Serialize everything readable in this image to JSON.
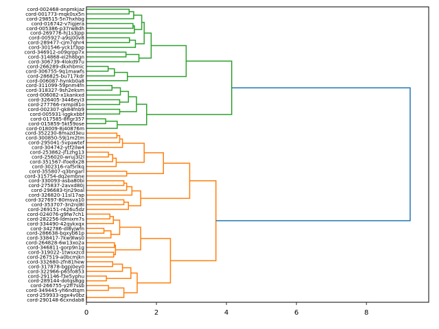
{
  "chart_data": {
    "type": "dendrogram",
    "orientation": "left",
    "title": "",
    "xlabel": "",
    "ylabel": "",
    "xlim": [
      0,
      9.78
    ],
    "xticks": [
      0,
      2,
      4,
      6,
      8
    ],
    "grid": false,
    "colors": {
      "cluster_green": "#2ca02c",
      "cluster_orange": "#ff7f0e",
      "above_threshold": "#1f77b4",
      "axis": "#000000"
    },
    "leaves": [
      "cord-002468-onpmkjaz",
      "cord-001773-mqk0sx5n",
      "cord-298515-5n7hxhbg",
      "cord-016742-v7igjera",
      "cord-005386-p37rw8dh",
      "cord-269776-hj1s3jpp",
      "cord-005927-a9sj00v8",
      "cord-289477-cjm7qhr4",
      "cord-301546-yck1f3pp",
      "cord-346912-o09qrpp7x",
      "cord-314868-ei2h8bgn",
      "cord-306739-4lokd97u",
      "cord-266289-dkxhbmic",
      "cord-306755-9q1mawfs",
      "cord-286825-bu717kdr",
      "cord-006087-hynkb0a8",
      "cord-311099-59pnm4fn",
      "cord-318327-9sh2eksm",
      "cord-006082-x1kankxd",
      "cord-326405-3446eyi3",
      "cord-277766-rxmpi81o",
      "cord-002307-gk84fnb9",
      "cord-005931-iggkxbbf",
      "cord-017585-8flgr357",
      "cord-015859-5kt59ose",
      "cord-018009-8j40876m",
      "cord-352230-8mazd3eu",
      "cord-300850-59j1m2tm",
      "cord-295041-5vpawtef",
      "cord-304742-ytf2ilw4",
      "cord-253862-jf1zhg13",
      "cord-256020-wruj3l2l",
      "cord-351567-ifoe8x28",
      "cord-302316-raf5rlkq",
      "cord-355807-q3bngarl",
      "cord-315754-dq2embne",
      "cord-330093-asba80bi",
      "cord-275837-2avxd80j",
      "cord-296683-tjn29oal",
      "cord-326820-11sl17ap",
      "cord-327697-80msva10",
      "cord-353707-3n2njl8l",
      "cord-269151-r426u5dz",
      "cord-024076-g9fw7ch1",
      "cord-282256-ldmixm7s",
      "cord-334490-42qykxqx",
      "cord-342786-dl8yjwfn",
      "cord-286638-bqxyb61p",
      "cord-338417-7kw9lws0",
      "cord-264828-6w13xo2a",
      "cord-346811-gorp9n1g",
      "cord-319022-1twsxzcd",
      "cord-267519-a0bcmjkn",
      "cord-332680-zfn81hew",
      "cord-317878-bgpj0ey0",
      "cord-322966-p65fo853",
      "cord-291146-f3e5yphu",
      "cord-289144-dotqs8gg",
      "cord-266755-y2ff7ssb",
      "cord-349445-yh6ndtqm",
      "cord-259933-qgx4v0bz",
      "cord-290148-6cxndab8"
    ],
    "tree": {
      "h": 9.25,
      "c": "above_threshold",
      "ch": [
        {
          "h": 4.15,
          "c": "cluster_green",
          "ch": [
            {
              "h": 2.85,
              "c": "cluster_green",
              "ch": [
                {
                  "h": 1.85,
                  "c": "cluster_green",
                  "ch": [
                    {
                      "h": 1.65,
                      "c": "cluster_green",
                      "ch": [
                        {
                          "h": 1.58,
                          "c": "cluster_green",
                          "ch": [
                            {
                              "h": 1.35,
                              "c": "cluster_green",
                              "ch": [
                                {
                                  "h": 1.22,
                                  "c": "cluster_green",
                                  "ch": [
                                    0,
                                    1
                                  ]
                                },
                                2
                              ]
                            },
                            {
                              "h": 1.37,
                              "c": "cluster_green",
                              "ch": [
                                {
                                  "h": 1.33,
                                  "c": "cluster_green",
                                  "ch": [
                                    3,
                                    4
                                  ]
                                },
                                5
                              ]
                            }
                          ]
                        },
                        {
                          "h": 1.4,
                          "c": "cluster_green",
                          "ch": [
                            {
                              "h": 1.23,
                              "c": "cluster_green",
                              "ch": [
                                6,
                                7
                              ]
                            },
                            8
                          ]
                        }
                      ]
                    },
                    {
                      "h": 1.5,
                      "c": "cluster_green",
                      "ch": [
                        {
                          "h": 1.13,
                          "c": "cluster_green",
                          "ch": [
                            9,
                            10
                          ]
                        },
                        11
                      ]
                    }
                  ]
                },
                {
                  "h": 1.17,
                  "c": "cluster_green",
                  "ch": [
                    {
                      "h": 0.8,
                      "c": "cluster_green",
                      "ch": [
                        {
                          "h": 0.62,
                          "c": "cluster_green",
                          "ch": [
                            12,
                            13
                          ]
                        },
                        14
                      ]
                    },
                    15
                  ]
                }
              ]
            },
            {
              "h": 1.72,
              "c": "cluster_green",
              "ch": [
                {
                  "h": 1.43,
                  "c": "cluster_green",
                  "ch": [
                    {
                      "h": 1.2,
                      "c": "cluster_green",
                      "ch": [
                        {
                          "h": 0.97,
                          "c": "cluster_green",
                          "ch": [
                            {
                              "h": 0.73,
                              "c": "cluster_green",
                              "ch": [
                                16,
                                17
                              ]
                            },
                            18
                          ]
                        },
                        {
                          "h": 0.95,
                          "c": "cluster_green",
                          "ch": [
                            19,
                            20
                          ]
                        }
                      ]
                    },
                    {
                      "h": 0.95,
                      "c": "cluster_green",
                      "ch": [
                        21,
                        22
                      ]
                    }
                  ]
                },
                {
                  "h": 0.88,
                  "c": "cluster_green",
                  "ch": [
                    {
                      "h": 0.55,
                      "c": "cluster_green",
                      "ch": [
                        23,
                        24
                      ]
                    },
                    25
                  ]
                }
              ]
            }
          ]
        },
        {
          "h": 3.7,
          "c": "cluster_orange",
          "ch": [
            {
              "h": 2.95,
              "c": "cluster_orange",
              "ch": [
                {
                  "h": 2.2,
                  "c": "cluster_orange",
                  "ch": [
                    {
                      "h": 1.65,
                      "c": "cluster_orange",
                      "ch": [
                        {
                          "h": 1.03,
                          "c": "cluster_orange",
                          "ch": [
                            {
                              "h": 0.95,
                              "c": "cluster_orange",
                              "ch": [
                                {
                                  "h": 0.87,
                                  "c": "cluster_orange",
                                  "ch": [
                                    26,
                                    27
                                  ]
                                },
                                28
                              ]
                            },
                            29
                          ]
                        },
                        {
                          "h": 0.85,
                          "c": "cluster_orange",
                          "ch": [
                            {
                              "h": 0.75,
                              "c": "cluster_orange",
                              "ch": [
                                {
                                  "h": 0.63,
                                  "c": "cluster_orange",
                                  "ch": [
                                    30,
                                    31
                                  ]
                                },
                                32
                              ]
                            },
                            33
                          ]
                        }
                      ]
                    },
                    {
                      "h": 1.15,
                      "c": "cluster_orange",
                      "ch": [
                        34,
                        35
                      ]
                    }
                  ]
                },
                {
                  "h": 1.55,
                  "c": "cluster_orange",
                  "ch": [
                    {
                      "h": 1.3,
                      "c": "cluster_orange",
                      "ch": [
                        {
                          "h": 1.15,
                          "c": "cluster_orange",
                          "ch": [
                            {
                              "h": 1.07,
                              "c": "cluster_orange",
                              "ch": [
                                36,
                                37
                              ]
                            },
                            38
                          ]
                        },
                        39
                      ]
                    },
                    {
                      "h": 1.2,
                      "c": "cluster_orange",
                      "ch": [
                        {
                          "h": 1.07,
                          "c": "cluster_orange",
                          "ch": [
                            40,
                            41
                          ]
                        },
                        42
                      ]
                    }
                  ]
                }
              ]
            },
            {
              "h": 2.4,
              "c": "cluster_orange",
              "ch": [
                {
                  "h": 1.55,
                  "c": "cluster_orange",
                  "ch": [
                    {
                      "h": 0.95,
                      "c": "cluster_orange",
                      "ch": [
                        {
                          "h": 0.77,
                          "c": "cluster_orange",
                          "ch": [
                            {
                              "h": 0.67,
                              "c": "cluster_orange",
                              "ch": [
                                43,
                                44
                              ]
                            },
                            45
                          ]
                        },
                        {
                          "h": 0.7,
                          "c": "cluster_orange",
                          "ch": [
                            {
                              "h": 0.5,
                              "c": "cluster_orange",
                              "ch": [
                                46,
                                47
                              ]
                            },
                            48
                          ]
                        }
                      ]
                    },
                    {
                      "h": 0.83,
                      "c": "cluster_orange",
                      "ch": [
                        {
                          "h": 0.8,
                          "c": "cluster_orange",
                          "ch": [
                            49,
                            50
                          ]
                        },
                        {
                          "h": 0.78,
                          "c": "cluster_orange",
                          "ch": [
                            51,
                            52
                          ]
                        }
                      ]
                    }
                  ]
                },
                {
                  "h": 1.45,
                  "c": "cluster_orange",
                  "ch": [
                    {
                      "h": 1.27,
                      "c": "cluster_orange",
                      "ch": [
                        {
                          "h": 1.03,
                          "c": "cluster_orange",
                          "ch": [
                            {
                              "h": 0.75,
                              "c": "cluster_orange",
                              "ch": [
                                53,
                                54
                              ]
                            },
                            55
                          ]
                        },
                        {
                          "h": 0.57,
                          "c": "cluster_orange",
                          "ch": [
                            56,
                            57
                          ]
                        }
                      ]
                    },
                    {
                      "h": 1.07,
                      "c": "cluster_orange",
                      "ch": [
                        {
                          "h": 0.63,
                          "c": "cluster_orange",
                          "ch": [
                            58,
                            59
                          ]
                        },
                        {
                          "h": 0.0,
                          "c": "cluster_orange",
                          "ch": [
                            60,
                            61
                          ]
                        }
                      ]
                    }
                  ]
                }
              ]
            }
          ]
        }
      ]
    }
  }
}
